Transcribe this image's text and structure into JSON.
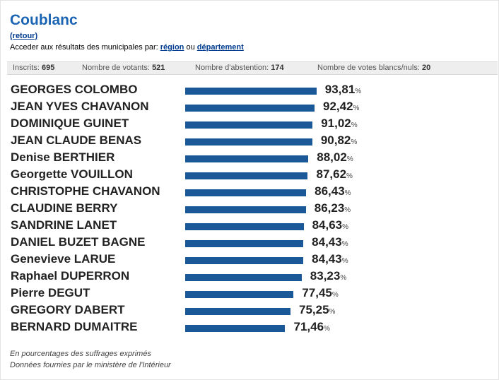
{
  "header": {
    "title": "Coublanc",
    "back_link": "(retour)",
    "access_text": "Acceder aux résultats des municipales par:",
    "region_link": "région",
    "or_text": "ou",
    "departement_link": "département"
  },
  "stats": {
    "inscrits_label": "Inscrits:",
    "inscrits_value": "695",
    "votants_label": "Nombre de votants:",
    "votants_value": "521",
    "abstention_label": "Nombre d'abstention:",
    "abstention_value": "174",
    "blancs_label": "Nombre de votes blancs/nuls:",
    "blancs_value": "20"
  },
  "chart_data": {
    "type": "bar",
    "orientation": "horizontal",
    "unit": "%",
    "categories": [
      "GEORGES COLOMBO",
      "JEAN YVES CHAVANON",
      "DOMINIQUE GUINET",
      "JEAN CLAUDE BENAS",
      "Denise BERTHIER",
      "Georgette VOUILLON",
      "CHRISTOPHE CHAVANON",
      "CLAUDINE BERRY",
      "SANDRINE LANET",
      "DANIEL BUZET BAGNE",
      "Genevieve LARUE",
      "Raphael DUPERRON",
      "Pierre DEGUT",
      "GREGORY DABERT",
      "BERNARD DUMAITRE"
    ],
    "values": [
      93.81,
      92.42,
      91.02,
      90.82,
      88.02,
      87.62,
      86.43,
      86.23,
      84.63,
      84.43,
      84.43,
      83.23,
      77.45,
      75.25,
      71.46
    ],
    "labels": [
      "93,81",
      "92,42",
      "91,02",
      "90,82",
      "88,02",
      "87,62",
      "86,43",
      "86,23",
      "84,63",
      "84,43",
      "84,43",
      "83,23",
      "77,45",
      "75,25",
      "71,46"
    ],
    "bar_color": "#1b5897",
    "xlim": [
      0,
      100
    ]
  },
  "footer": {
    "note1": "En pourcentages des suffrages exprimés",
    "note2": "Données fournies par le ministère de l'Intérieur"
  }
}
